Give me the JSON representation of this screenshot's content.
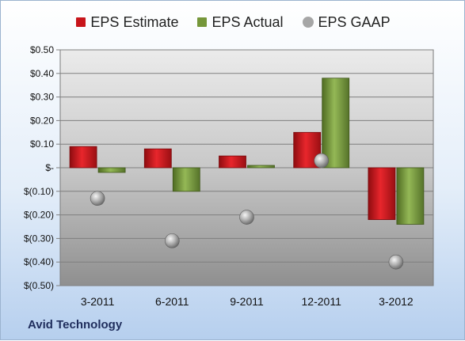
{
  "company": "Avid Technology",
  "colors": {
    "estimate": "#c8151b",
    "actual": "#76973a",
    "gaap": "#a6a6a6"
  },
  "chart_data": {
    "type": "bar",
    "categories": [
      "3-2011",
      "6-2011",
      "9-2011",
      "12-2011",
      "3-2012"
    ],
    "series": [
      {
        "name": "EPS Estimate",
        "values": [
          0.09,
          0.08,
          0.05,
          0.15,
          -0.22
        ]
      },
      {
        "name": "EPS Actual",
        "values": [
          -0.02,
          -0.1,
          0.01,
          0.38,
          -0.24
        ]
      },
      {
        "name": "EPS GAAP",
        "values": [
          -0.13,
          -0.31,
          -0.21,
          0.03,
          -0.4
        ],
        "style": "point"
      }
    ],
    "ylim": [
      -0.5,
      0.5
    ],
    "yticks": [
      0.5,
      0.4,
      0.3,
      0.2,
      0.1,
      0.0,
      -0.1,
      -0.2,
      -0.3,
      -0.4,
      -0.5
    ],
    "ytick_labels": [
      "$0.50",
      "$0.40",
      "$0.30",
      "$0.20",
      "$0.10",
      "$-",
      "$(0.10)",
      "$(0.20)",
      "$(0.30)",
      "$(0.40)",
      "$(0.50)"
    ],
    "grid": true,
    "legend": "top-center",
    "title": "",
    "xlabel": "",
    "ylabel": ""
  }
}
